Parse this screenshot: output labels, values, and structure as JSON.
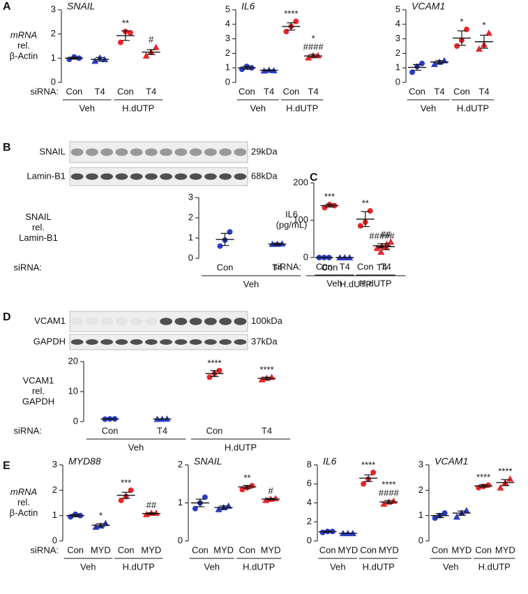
{
  "chart_data": [
    {
      "type": "dot",
      "panel": "A",
      "title": "SNAIL",
      "ylabel": [
        "mRNA",
        "rel.",
        "β-Actin"
      ],
      "xlabel": "siRNA:",
      "categories": [
        "Con",
        "T4",
        "Con",
        "T4"
      ],
      "groups": [
        "Veh",
        "H.dUTP"
      ],
      "ylim": [
        0,
        3
      ],
      "yticks": [
        0,
        1,
        2,
        3
      ],
      "colors": [
        "#2b3cc4",
        "#2b3cc4",
        "#e8262a",
        "#e8262a"
      ],
      "markers": [
        "circle",
        "triangle",
        "circle",
        "triangle"
      ],
      "points": [
        [
          0.95,
          1.05,
          1.0
        ],
        [
          0.88,
          1.02,
          0.95
        ],
        [
          1.65,
          2.1,
          2.05
        ],
        [
          1.1,
          1.25,
          1.45
        ]
      ],
      "means": [
        1.0,
        0.95,
        1.93,
        1.25
      ],
      "sems": [
        0.04,
        0.08,
        0.2,
        0.1
      ],
      "annotations": [
        null,
        null,
        [
          "**"
        ],
        [
          "#"
        ]
      ]
    },
    {
      "type": "dot",
      "title": "IL6",
      "categories": [
        "Con",
        "T4",
        "Con",
        "T4"
      ],
      "groups": [
        "Veh",
        "H.dUTP"
      ],
      "ylim": [
        0,
        5
      ],
      "yticks": [
        0,
        1,
        2,
        3,
        4,
        5
      ],
      "colors": [
        "#2b3cc4",
        "#2b3cc4",
        "#e8262a",
        "#e8262a"
      ],
      "markers": [
        "circle",
        "triangle",
        "circle",
        "triangle"
      ],
      "points": [
        [
          0.9,
          1.1,
          1.0
        ],
        [
          0.8,
          0.85,
          0.82
        ],
        [
          3.5,
          3.85,
          4.2
        ],
        [
          1.7,
          1.85,
          1.85
        ]
      ],
      "means": [
        1.0,
        0.83,
        3.85,
        1.82
      ],
      "sems": [
        0.1,
        0.03,
        0.25,
        0.1
      ],
      "annotations": [
        null,
        null,
        [
          "****"
        ],
        [
          "*",
          "####"
        ]
      ]
    },
    {
      "type": "dot",
      "title": "VCAM1",
      "categories": [
        "Con",
        "T4",
        "Con",
        "T4"
      ],
      "groups": [
        "Veh",
        "H.dUTP"
      ],
      "ylim": [
        0,
        5
      ],
      "yticks": [
        0,
        1,
        2,
        3,
        4,
        5
      ],
      "colors": [
        "#2b3cc4",
        "#2b3cc4",
        "#e8262a",
        "#e8262a"
      ],
      "markers": [
        "circle",
        "triangle",
        "circle",
        "triangle"
      ],
      "points": [
        [
          0.7,
          1.1,
          1.3
        ],
        [
          1.25,
          1.4,
          1.5
        ],
        [
          2.5,
          2.9,
          3.65
        ],
        [
          2.3,
          2.6,
          3.4
        ]
      ],
      "means": [
        1.03,
        1.4,
        3.05,
        2.8
      ],
      "sems": [
        0.2,
        0.1,
        0.5,
        0.45
      ],
      "annotations": [
        null,
        null,
        [
          "*"
        ],
        [
          "*"
        ]
      ]
    },
    {
      "type": "dot",
      "panel": "B",
      "ylabel": [
        "SNAIL",
        "rel.",
        "Lamin-B1"
      ],
      "xlabel": "siRNA:",
      "blot": [
        {
          "label": "SNAIL",
          "size": "29kDa"
        },
        {
          "label": "Lamin-B1",
          "size": "68kDa"
        }
      ],
      "categories": [
        "Con",
        "T4",
        "Con",
        "T4"
      ],
      "groups": [
        "Veh",
        "H.dUTP"
      ],
      "ylim": [
        0,
        3
      ],
      "yticks": [
        0,
        1,
        2,
        3
      ],
      "colors": [
        "#2b3cc4",
        "#2b3cc4",
        "#e8262a",
        "#e8262a"
      ],
      "markers": [
        "circle",
        "triangle",
        "circle",
        "triangle"
      ],
      "points": [
        [
          0.6,
          0.9,
          1.3
        ],
        [
          0.7,
          0.7,
          0.72
        ],
        [
          2.5,
          2.65,
          2.6
        ],
        [
          0.5,
          0.6,
          0.7
        ]
      ],
      "means": [
        0.93,
        0.7,
        2.6,
        0.62
      ],
      "sems": [
        0.3,
        0.05,
        0.07,
        0.1
      ],
      "annotations": [
        null,
        null,
        [
          "***"
        ],
        [
          "#####"
        ]
      ]
    },
    {
      "type": "dot",
      "panel": "C",
      "ylabel": [
        "IL6",
        "(pg/mL)"
      ],
      "xlabel": "siRNA:",
      "categories": [
        "Con",
        "T4",
        "Con",
        "T4"
      ],
      "groups": [
        "Veh",
        "H.dUTP"
      ],
      "ylim": [
        0,
        200
      ],
      "yticks": [
        0,
        100,
        200
      ],
      "colors": [
        "#2b3cc4",
        "#2b3cc4",
        "#e8262a",
        "#e8262a"
      ],
      "markers": [
        "circle",
        "triangle",
        "circle",
        "triangle"
      ],
      "points": [
        [
          0,
          0,
          0
        ],
        [
          0,
          0,
          0
        ],
        [
          85,
          95,
          125
        ],
        [
          15,
          30,
          42
        ]
      ],
      "means": [
        0,
        0,
        103,
        29
      ],
      "sems": [
        0,
        0,
        20,
        8
      ],
      "annotations": [
        null,
        null,
        [
          "**"
        ],
        [
          "##"
        ]
      ]
    },
    {
      "type": "dot",
      "panel": "D",
      "ylabel": [
        "VCAM1",
        "rel.",
        "GAPDH"
      ],
      "xlabel": "siRNA:",
      "blot": [
        {
          "label": "VCAM1",
          "size": "100kDa"
        },
        {
          "label": "GAPDH",
          "size": "37kDa"
        }
      ],
      "categories": [
        "Con",
        "T4",
        "Con",
        "T4"
      ],
      "groups": [
        "Veh",
        "H.dUTP"
      ],
      "ylim": [
        0,
        20
      ],
      "yticks": [
        0,
        10,
        20
      ],
      "colors": [
        "#2b3cc4",
        "#2b3cc4",
        "#e8262a",
        "#e8262a"
      ],
      "markers": [
        "circle",
        "triangle",
        "circle",
        "triangle"
      ],
      "points": [
        [
          0.8,
          0.9,
          0.9
        ],
        [
          0.8,
          0.85,
          0.9
        ],
        [
          14.8,
          16,
          17
        ],
        [
          14,
          14.5,
          14.8
        ]
      ],
      "means": [
        0.85,
        0.85,
        16,
        14.4
      ],
      "sems": [
        0.1,
        0.05,
        1,
        0.4
      ],
      "annotations": [
        null,
        null,
        [
          "****"
        ],
        [
          "****"
        ]
      ]
    },
    {
      "type": "dot",
      "panel": "E",
      "title": "MYD88",
      "ylabel": [
        "mRNA",
        "rel.",
        "β-Actin"
      ],
      "xlabel": "siRNA:",
      "categories": [
        "Con",
        "MYD",
        "Con",
        "MYD"
      ],
      "groups": [
        "Veh",
        "H.dUTP"
      ],
      "ylim": [
        0,
        3
      ],
      "yticks": [
        0,
        1,
        2,
        3
      ],
      "colors": [
        "#2b3cc4",
        "#2b3cc4",
        "#e8262a",
        "#e8262a"
      ],
      "markers": [
        "circle",
        "triangle",
        "circle",
        "triangle"
      ],
      "points": [
        [
          0.95,
          1.05,
          1.0
        ],
        [
          0.55,
          0.6,
          0.7
        ],
        [
          1.6,
          1.75,
          2.0
        ],
        [
          1.05,
          1.1,
          1.1
        ]
      ],
      "means": [
        1.0,
        0.62,
        1.8,
        1.08
      ],
      "sems": [
        0.05,
        0.06,
        0.12,
        0.03
      ],
      "annotations": [
        null,
        [
          "*"
        ],
        [
          "***"
        ],
        [
          "##"
        ]
      ]
    },
    {
      "type": "dot",
      "title": "SNAIL",
      "categories": [
        "Con",
        "MYD",
        "Con",
        "MYD"
      ],
      "groups": [
        "Veh",
        "H.dUTP"
      ],
      "ylim": [
        0,
        2
      ],
      "yticks": [
        0,
        1,
        2
      ],
      "colors": [
        "#2b3cc4",
        "#2b3cc4",
        "#e8262a",
        "#e8262a"
      ],
      "markers": [
        "circle",
        "triangle",
        "circle",
        "triangle"
      ],
      "points": [
        [
          0.85,
          1.0,
          1.15
        ],
        [
          0.83,
          0.88,
          0.92
        ],
        [
          1.35,
          1.4,
          1.45
        ],
        [
          1.07,
          1.1,
          1.12
        ]
      ],
      "means": [
        1.0,
        0.88,
        1.42,
        1.1
      ],
      "sems": [
        0.1,
        0.04,
        0.04,
        0.02
      ],
      "annotations": [
        null,
        null,
        [
          "**"
        ],
        [
          "#"
        ]
      ]
    },
    {
      "type": "dot",
      "title": "IL6",
      "categories": [
        "Con",
        "MYD",
        "Con",
        "MYD"
      ],
      "groups": [
        "Veh",
        "H.dUTP"
      ],
      "ylim": [
        0,
        8
      ],
      "yticks": [
        0,
        2,
        4,
        6,
        8
      ],
      "colors": [
        "#2b3cc4",
        "#2b3cc4",
        "#e8262a",
        "#e8262a"
      ],
      "markers": [
        "circle",
        "triangle",
        "circle",
        "triangle"
      ],
      "points": [
        [
          0.9,
          1.0,
          1.0
        ],
        [
          0.8,
          0.8,
          0.8
        ],
        [
          6.0,
          6.5,
          7.2
        ],
        [
          3.9,
          4.1,
          4.2
        ]
      ],
      "means": [
        0.97,
        0.8,
        6.6,
        4.1
      ],
      "sems": [
        0.05,
        0.02,
        0.35,
        0.15
      ],
      "annotations": [
        null,
        null,
        [
          "****"
        ],
        [
          "****",
          "####"
        ]
      ]
    },
    {
      "type": "dot",
      "title": "VCAM1",
      "categories": [
        "Con",
        "MYD",
        "Con",
        "MYD"
      ],
      "groups": [
        "Veh",
        "H.dUTP"
      ],
      "ylim": [
        0,
        3
      ],
      "yticks": [
        0,
        1,
        2,
        3
      ],
      "colors": [
        "#2b3cc4",
        "#2b3cc4",
        "#e8262a",
        "#e8262a"
      ],
      "markers": [
        "circle",
        "triangle",
        "circle",
        "triangle"
      ],
      "points": [
        [
          0.9,
          1.0,
          1.1
        ],
        [
          0.95,
          1.1,
          1.2
        ],
        [
          2.1,
          2.15,
          2.2
        ],
        [
          2.1,
          2.3,
          2.45
        ]
      ],
      "means": [
        1.0,
        1.1,
        2.17,
        2.3
      ],
      "sems": [
        0.08,
        0.08,
        0.05,
        0.12
      ],
      "annotations": [
        null,
        null,
        [
          "****"
        ],
        [
          "****"
        ]
      ]
    }
  ]
}
